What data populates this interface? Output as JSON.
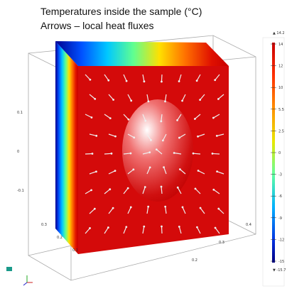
{
  "title": [
    "Temperatures inside the sample (°C)",
    "Arrows – local heat fluxes"
  ],
  "colorbar": {
    "max": "▲ 14.2",
    "min": "▼ -15.7",
    "ticks": [
      "14",
      "12",
      "10",
      "5.5",
      "2.5",
      "0",
      "-3",
      "-6",
      "-9",
      "-12",
      "-15"
    ]
  },
  "axes": {
    "z": [
      "0.1",
      "0",
      "-0.1"
    ],
    "y": [
      "0.3",
      "0.2",
      "0.1"
    ],
    "x": [
      "0.2",
      "0.3",
      "0.4"
    ]
  }
}
